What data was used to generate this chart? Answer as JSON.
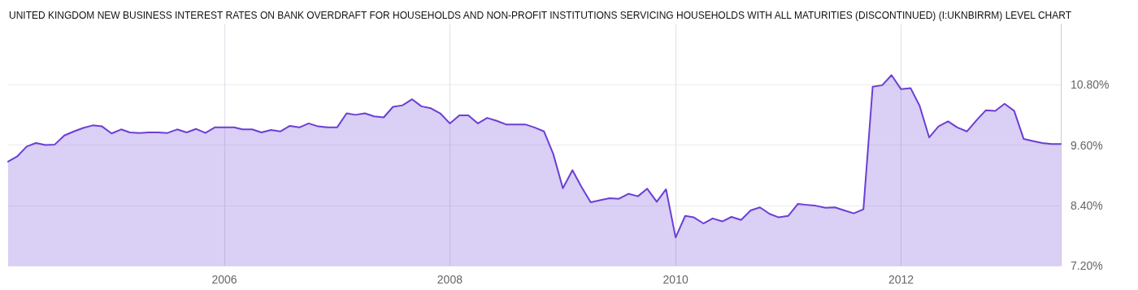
{
  "chart_data": {
    "type": "area",
    "title": "UNITED KINGDOM NEW BUSINESS INTEREST RATES ON BANK OVERDRAFT FOR HOUSEHOLDS AND NON-PROFIT INSTITUTIONS SERVICING HOUSEHOLDS WITH ALL MATURITIES (DISCONTINUED) (I:UKNBIRRM) LEVEL CHART",
    "x": [
      "2004-02",
      "2004-03",
      "2004-04",
      "2004-05",
      "2004-06",
      "2004-07",
      "2004-08",
      "2004-09",
      "2004-10",
      "2004-11",
      "2004-12",
      "2005-01",
      "2005-02",
      "2005-03",
      "2005-04",
      "2005-05",
      "2005-06",
      "2005-07",
      "2005-08",
      "2005-09",
      "2005-10",
      "2005-11",
      "2005-12",
      "2006-01",
      "2006-02",
      "2006-03",
      "2006-04",
      "2006-05",
      "2006-06",
      "2006-07",
      "2006-08",
      "2006-09",
      "2006-10",
      "2006-11",
      "2006-12",
      "2007-01",
      "2007-02",
      "2007-03",
      "2007-04",
      "2007-05",
      "2007-06",
      "2007-07",
      "2007-08",
      "2007-09",
      "2007-10",
      "2007-11",
      "2007-12",
      "2008-01",
      "2008-02",
      "2008-03",
      "2008-04",
      "2008-05",
      "2008-06",
      "2008-07",
      "2008-08",
      "2008-09",
      "2008-10",
      "2008-11",
      "2008-12",
      "2009-01",
      "2009-02",
      "2009-03",
      "2009-04",
      "2009-05",
      "2009-06",
      "2009-07",
      "2009-08",
      "2009-09",
      "2009-10",
      "2009-11",
      "2009-12",
      "2010-01",
      "2010-02",
      "2010-03",
      "2010-04",
      "2010-05",
      "2010-06",
      "2010-07",
      "2010-08",
      "2010-09",
      "2010-10",
      "2010-11",
      "2010-12",
      "2011-01",
      "2011-02",
      "2011-03",
      "2011-04",
      "2011-05",
      "2011-06",
      "2011-07",
      "2011-08",
      "2011-09",
      "2011-10",
      "2011-11",
      "2011-12",
      "2012-01",
      "2012-02",
      "2012-03",
      "2012-04",
      "2012-05",
      "2012-06",
      "2012-07",
      "2012-08",
      "2012-09",
      "2012-10",
      "2012-11",
      "2012-12",
      "2013-01",
      "2013-02",
      "2013-03",
      "2013-04",
      "2013-05",
      "2013-06"
    ],
    "series": [
      {
        "color": "#6b3fd4",
        "values": [
          9.27,
          9.37,
          9.57,
          9.64,
          9.6,
          9.61,
          9.79,
          9.87,
          9.94,
          9.99,
          9.97,
          9.83,
          9.91,
          9.85,
          9.84,
          9.85,
          9.85,
          9.84,
          9.91,
          9.85,
          9.92,
          9.84,
          9.95,
          9.95,
          9.95,
          9.91,
          9.91,
          9.85,
          9.9,
          9.87,
          9.98,
          9.95,
          10.03,
          9.97,
          9.95,
          9.95,
          10.23,
          10.2,
          10.23,
          10.17,
          10.15,
          10.36,
          10.39,
          10.51,
          10.37,
          10.33,
          10.23,
          10.03,
          10.19,
          10.19,
          10.03,
          10.14,
          10.08,
          10.01,
          10.01,
          10.01,
          9.95,
          9.87,
          9.42,
          8.74,
          9.1,
          8.78,
          8.46,
          8.5,
          8.54,
          8.53,
          8.63,
          8.58,
          8.73,
          8.47,
          8.72,
          7.76,
          8.19,
          8.16,
          8.04,
          8.14,
          8.08,
          8.17,
          8.11,
          8.3,
          8.36,
          8.23,
          8.16,
          8.19,
          8.43,
          8.41,
          8.39,
          8.35,
          8.36,
          8.3,
          8.24,
          8.32,
          10.76,
          10.79,
          10.99,
          10.71,
          10.73,
          10.38,
          9.75,
          9.97,
          10.07,
          9.95,
          9.87,
          10.09,
          10.29,
          10.28,
          10.42,
          10.28,
          9.72,
          9.68,
          9.64,
          9.62,
          9.62
        ]
      }
    ],
    "xlim": [
      "2004-02",
      "2013-06"
    ],
    "xticks": [
      {
        "value": "2006",
        "label": "2006"
      },
      {
        "value": "2008",
        "label": "2008"
      },
      {
        "value": "2010",
        "label": "2010"
      },
      {
        "value": "2012",
        "label": "2012"
      }
    ],
    "ylim": [
      7.2,
      12.0
    ],
    "yticks": [
      {
        "value": 7.2,
        "label": "7.20%"
      },
      {
        "value": 8.4,
        "label": "8.40%"
      },
      {
        "value": 9.6,
        "label": "9.60%"
      },
      {
        "value": 10.8,
        "label": "10.80%"
      }
    ],
    "grid": true,
    "marker": "none",
    "line_style": "solid"
  }
}
